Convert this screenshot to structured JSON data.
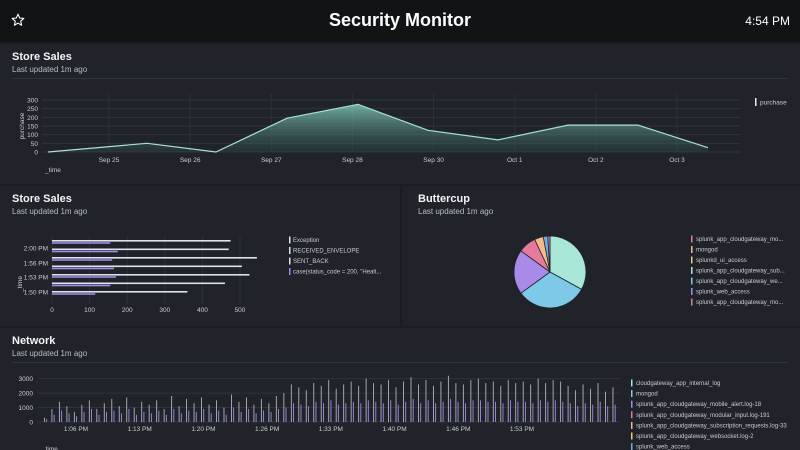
{
  "header": {
    "title": "Security Monitor",
    "time": "4:54 PM",
    "star_icon": "star-outline-icon"
  },
  "panels": [
    {
      "title": "Store Sales",
      "subtitle": "Last updated 1m ago"
    },
    {
      "title": "Store Sales",
      "subtitle": "Last updated 1m ago"
    },
    {
      "title": "Buttercup",
      "subtitle": "Last updated 1m ago"
    },
    {
      "title": "Network",
      "subtitle": "Last updated 1m ago"
    }
  ],
  "colors": {
    "background": "#1a1d21",
    "panel": "#20242a",
    "header": "#111315",
    "area_line": "#a8e0d5",
    "bar_purple": "#9d8ce8",
    "bar_white": "#dfe3ea"
  },
  "chart_data": [
    {
      "type": "area",
      "xlabel": "_time",
      "ylabel": "purchase",
      "y_ticks": [
        0,
        50,
        100,
        150,
        200,
        250,
        300
      ],
      "ylim": [
        0,
        300
      ],
      "x_ticks": [
        "Sep 25",
        "Sep 26",
        "Sep 27",
        "Sep 28",
        "Sep 30",
        "Oct 1",
        "Oct 2",
        "Oct 3"
      ],
      "legend": [
        "purchase"
      ],
      "legend_position": "right",
      "grid": true,
      "series": [
        {
          "name": "purchase",
          "values": [
            0,
            50,
            0,
            195,
            275,
            125,
            70,
            155,
            155,
            25
          ]
        }
      ]
    },
    {
      "type": "bar",
      "orientation": "horizontal",
      "ylabel": "_time",
      "y_ticks": [
        "2:00 PM",
        "1:56 PM",
        "1:53 PM",
        "1:50 PM"
      ],
      "x_ticks": [
        0,
        100,
        200,
        300,
        400,
        500
      ],
      "xlim": [
        0,
        560
      ],
      "legend": [
        "Exception",
        "RECEIVED_ENVELOPE",
        "SENT_BACK",
        "case(status_code = 200, \"Healt..."
      ],
      "legend_position": "right",
      "legend_colors": [
        "#dfe3ea",
        "#dfe3ea",
        "#dfe3ea",
        "#9d8ce8"
      ],
      "series": [
        {
          "name": "Exception",
          "values": [
            475,
            470,
            545,
            505,
            525,
            460,
            360
          ]
        },
        {
          "name": "case(status_code = 200, \"Healt...",
          "values": [
            155,
            175,
            160,
            165,
            170,
            155,
            115
          ]
        }
      ]
    },
    {
      "type": "pie",
      "legend_position": "right",
      "slices": [
        {
          "label": "splunk_app_cloudgateway_mo...",
          "value": 33,
          "color": "#a8e6d8"
        },
        {
          "label": "mongod",
          "value": 32,
          "color": "#7ec8e8"
        },
        {
          "label": "splunkd_ui_access",
          "value": 20,
          "color": "#a98ae8"
        },
        {
          "label": "splunk_app_cloudgateway_sub...",
          "value": 8,
          "color": "#e47b9e"
        },
        {
          "label": "splunk_app_cloudgateway_we...",
          "value": 4,
          "color": "#f5b98a"
        },
        {
          "label": "splunk_web_access",
          "value": 2,
          "color": "#6fb0d8"
        },
        {
          "label": "splunk_app_cloudgateway_mo...",
          "value": 1,
          "color": "#c77ad6"
        }
      ],
      "legend_colors": [
        "#e47b9e",
        "#f5b98a",
        "#f5c77e",
        "#a8e6d8",
        "#7ec8e8",
        "#a98ae8",
        "#e47b9e"
      ]
    },
    {
      "type": "bar",
      "xlabel": "_time",
      "y_ticks": [
        0,
        1000,
        2000,
        3000
      ],
      "ylim": [
        0,
        3600
      ],
      "x_ticks": [
        "1:06 PM",
        "1:13 PM",
        "1:20 PM",
        "1:26 PM",
        "1:33 PM",
        "1:40 PM",
        "1:46 PM",
        "1:53 PM"
      ],
      "legend": [
        "cloudgateway_app_internal_log",
        "mongod",
        "splunk_app_cloudgateway_mobile_alert.log-18",
        "splunk_app_cloudgateway_modular_input.log-191",
        "splunk_app_cloudgateway_subscription_requests.log-33",
        "splunk_app_cloudgateway_websocket.log-2",
        "splunk_web_access"
      ],
      "legend_colors": [
        "#a8e6d8",
        "#7ec8e8",
        "#a98ae8",
        "#e47b9e",
        "#f5b98a",
        "#f5c77e",
        "#6fb0d8"
      ],
      "legend_position": "right",
      "series": [
        {
          "name": "cloudgateway_app_internal_log",
          "values": [
            300,
            900,
            1400,
            1100,
            700,
            1200,
            1500,
            900,
            1300,
            1600,
            1100,
            1700,
            1000,
            1400,
            1200,
            1500,
            900,
            1800,
            1100,
            1600,
            1300,
            1700,
            1200,
            1500,
            1000,
            1900,
            1400,
            1700,
            1200,
            1600,
            1300,
            1800,
            2000,
            2600,
            2400,
            2200,
            2700,
            2500,
            2900,
            2300,
            2600,
            2800,
            2500,
            3000,
            2700,
            2600,
            2900,
            2400,
            2800,
            3100,
            2600,
            2900,
            2500,
            2800,
            3200,
            2700,
            2600,
            2900,
            3000,
            2700,
            2800,
            2500,
            2900,
            2700,
            2800,
            2600,
            3000,
            2700,
            2900,
            2800,
            2500,
            2200,
            2600,
            2300,
            2700,
            2100,
            2400
          ]
        },
        {
          "name": "mongod",
          "values": [
            200,
            500,
            800,
            600,
            400,
            700,
            900,
            500,
            700,
            800,
            600,
            900,
            500,
            700,
            600,
            800,
            500,
            900,
            600,
            800,
            700,
            900,
            600,
            800,
            500,
            1000,
            700,
            900,
            600,
            800,
            700,
            900,
            1000,
            1300,
            1200,
            1100,
            1400,
            1300,
            1500,
            1200,
            1300,
            1400,
            1300,
            1500,
            1400,
            1300,
            1500,
            1200,
            1400,
            1600,
            1300,
            1500,
            1300,
            1400,
            1600,
            1400,
            1300,
            1500,
            1500,
            1400,
            1400,
            1300,
            1500,
            1400,
            1400,
            1300,
            1500,
            1400,
            1500,
            1400,
            1300,
            1100,
            1300,
            1200,
            1400,
            1100,
            1200
          ]
        }
      ]
    }
  ]
}
